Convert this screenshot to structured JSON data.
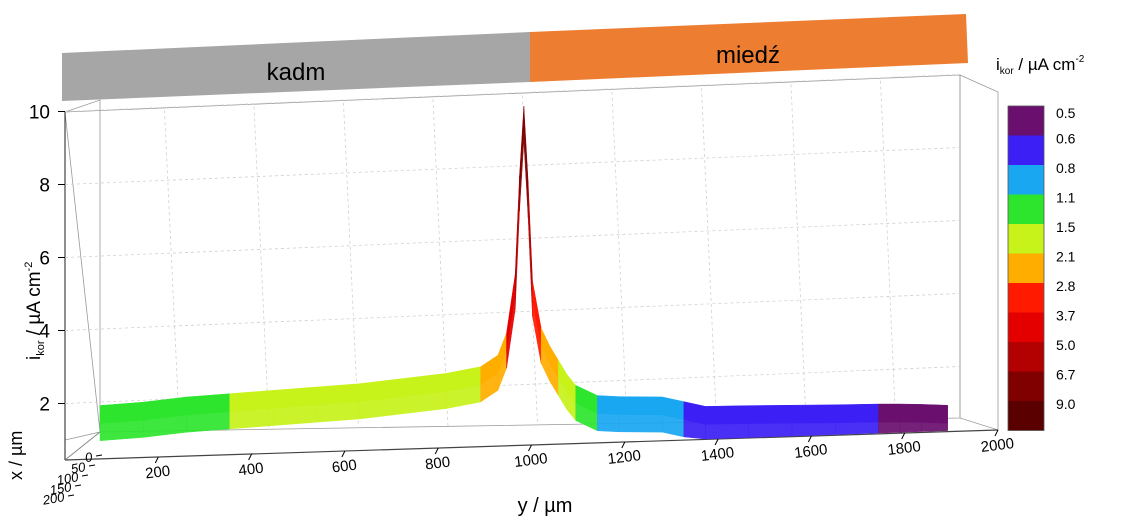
{
  "chart_data": {
    "type": "area",
    "title": "",
    "zone_labels": [
      {
        "text": "kadm",
        "color": "#a6a6a6",
        "y_range": [
          0,
          940
        ]
      },
      {
        "text": "miedź",
        "color": "#ed7d31",
        "y_range": [
          940,
          1960
        ]
      }
    ],
    "xlabel": "y / µm",
    "ylabel_parts": {
      "main": "i",
      "sub": "kor",
      "rest": " / µA cm",
      "sup": "-2"
    },
    "depth_label": "x / µm",
    "x_ticks": [
      200,
      400,
      600,
      800,
      1000,
      1200,
      1400,
      1600,
      1800,
      2000
    ],
    "y_ticks": [
      2,
      4,
      6,
      8,
      10
    ],
    "depth_ticks": [
      0,
      50,
      100,
      150,
      200
    ],
    "xlim": [
      0,
      2000
    ],
    "ylim": [
      1,
      10
    ],
    "grid": true,
    "colorbar": {
      "title_parts": {
        "main": "i",
        "sub": "kor",
        "rest": " / µA cm",
        "sup": "-2"
      },
      "levels": [
        "0.5",
        "0.6",
        "0.8",
        "1.1",
        "1.5",
        "2.1",
        "2.8",
        "3.7",
        "5.0",
        "6.7",
        "9.0"
      ],
      "colors": [
        "#6a0f6e",
        "#3b1ff5",
        "#1aa7f2",
        "#2ee52e",
        "#c7f21a",
        "#ffae00",
        "#ff1a00",
        "#e50000",
        "#b30000",
        "#800000",
        "#5a0000"
      ]
    },
    "series": [
      {
        "x": [
          0,
          100,
          200,
          300,
          400,
          500,
          600,
          700,
          800,
          880,
          920,
          940,
          960,
          970,
          980,
          990,
          1000,
          1020,
          1040,
          1060,
          1080,
          1100,
          1150,
          1200,
          1300,
          1350,
          1400,
          1500,
          1600,
          1700,
          1800,
          1850,
          1900,
          1960
        ],
        "y": [
          1.3,
          1.35,
          1.45,
          1.5,
          1.55,
          1.6,
          1.65,
          1.75,
          1.85,
          2.0,
          2.3,
          2.9,
          4.5,
          7.2,
          9.1,
          7.0,
          4.3,
          3.0,
          2.5,
          2.1,
          1.7,
          1.4,
          1.1,
          1.05,
          1.0,
          0.85,
          0.7,
          0.68,
          0.65,
          0.62,
          0.6,
          0.58,
          0.55,
          0.5
        ]
      }
    ]
  }
}
